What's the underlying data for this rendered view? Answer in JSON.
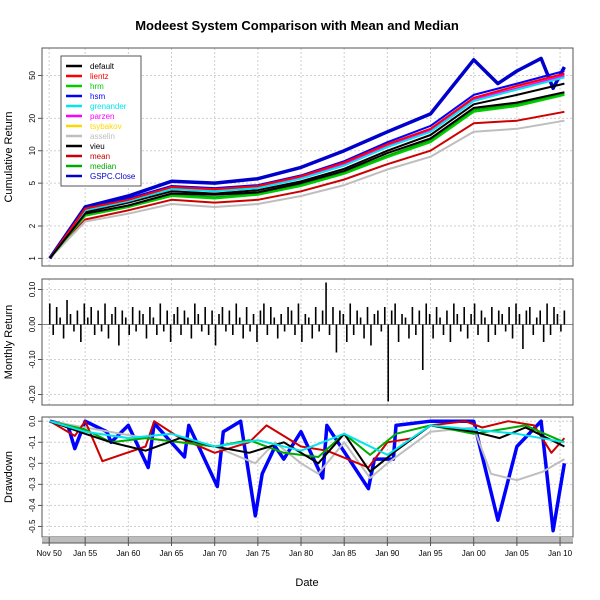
{
  "chart_data": [
    {
      "panel": "cumulative",
      "type": "line",
      "title": "Modeest System Comparison with Mean and Median",
      "ylabel": "Cumulative Return",
      "y_scale": "log",
      "ylim": [
        0.85,
        90
      ],
      "y_ticks": [
        1,
        2,
        5,
        10,
        20,
        50
      ],
      "grid": true,
      "legend_position": "top-left",
      "series": [
        {
          "name": "default",
          "color": "#000000",
          "x": [
            1950.9,
            1955,
            1960,
            1965,
            1970,
            1975,
            1980,
            1985,
            1990,
            1995,
            2000,
            2005,
            2010.5
          ],
          "values": [
            1,
            2.6,
            3.1,
            4.0,
            3.9,
            4.1,
            5.0,
            6.5,
            9.5,
            13,
            25,
            28,
            35
          ]
        },
        {
          "name": "lientz",
          "color": "#ff0000",
          "x": [
            1950.9,
            1955,
            1960,
            1965,
            1970,
            1975,
            1980,
            1985,
            1990,
            1995,
            2000,
            2005,
            2010.5
          ],
          "values": [
            1,
            2.9,
            3.5,
            4.6,
            4.4,
            4.7,
            5.8,
            7.8,
            11.5,
            16,
            31,
            40,
            52
          ]
        },
        {
          "name": "hrm",
          "color": "#00cc00",
          "x": [
            1950.9,
            1955,
            1960,
            1965,
            1970,
            1975,
            1980,
            1985,
            1990,
            1995,
            2000,
            2005,
            2010.5
          ],
          "values": [
            1,
            2.5,
            3.0,
            3.8,
            3.6,
            3.9,
            4.7,
            6.1,
            8.7,
            12,
            23,
            26,
            33
          ]
        },
        {
          "name": "hsm",
          "color": "#0000ff",
          "x": [
            1950.9,
            1955,
            1960,
            1965,
            1970,
            1975,
            1980,
            1985,
            1990,
            1995,
            2000,
            2005,
            2010.5
          ],
          "values": [
            1,
            2.9,
            3.6,
            4.7,
            4.5,
            4.8,
            5.9,
            8.0,
            12,
            17,
            33,
            42,
            55
          ]
        },
        {
          "name": "grenander",
          "color": "#00e5ee",
          "x": [
            1950.9,
            1955,
            1960,
            1965,
            1970,
            1975,
            1980,
            1985,
            1990,
            1995,
            2000,
            2005,
            2010.5
          ],
          "values": [
            1,
            2.8,
            3.4,
            4.4,
            4.2,
            4.5,
            5.5,
            7.3,
            10.8,
            15,
            29,
            37,
            48
          ]
        },
        {
          "name": "parzen",
          "color": "#ff00ff",
          "x": [
            1950.9,
            1955,
            1960,
            1965,
            1970,
            1975,
            1980,
            1985,
            1990,
            1995,
            2000,
            2005,
            2010.5
          ],
          "values": [
            1,
            2.8,
            3.4,
            4.5,
            4.3,
            4.6,
            5.6,
            7.5,
            11,
            15.5,
            30,
            38,
            50
          ]
        },
        {
          "name": "tsybakov",
          "color": "#ffd700",
          "x": [
            1950.9,
            1955,
            1960,
            1965,
            1970,
            1975,
            1980,
            1985,
            1990,
            1995,
            2000,
            2005,
            2010.5
          ],
          "values": [
            1,
            2.8,
            3.5,
            4.5,
            4.3,
            4.6,
            5.7,
            7.6,
            11.2,
            15.7,
            30.5,
            39,
            51
          ]
        },
        {
          "name": "asselin",
          "color": "#bebebe",
          "x": [
            1950.9,
            1955,
            1960,
            1965,
            1970,
            1975,
            1980,
            1985,
            1990,
            1995,
            2000,
            2005,
            2010.5
          ],
          "values": [
            1,
            2.2,
            2.6,
            3.2,
            3.0,
            3.2,
            3.8,
            4.8,
            6.7,
            8.8,
            15,
            16,
            19
          ]
        },
        {
          "name": "vieu",
          "color": "#000000",
          "x": [
            1950.9,
            1955,
            1960,
            1965,
            1970,
            1975,
            1980,
            1985,
            1990,
            1995,
            2000,
            2005,
            2010.5
          ],
          "values": [
            1,
            2.7,
            3.3,
            4.2,
            4.0,
            4.3,
            5.2,
            6.8,
            10,
            14,
            27,
            33,
            42
          ]
        },
        {
          "name": "mean",
          "color": "#cc0000",
          "x": [
            1950.9,
            1955,
            1960,
            1965,
            1970,
            1975,
            1980,
            1985,
            1990,
            1995,
            2000,
            2005,
            2010.5
          ],
          "values": [
            1,
            2.3,
            2.8,
            3.5,
            3.3,
            3.5,
            4.2,
            5.4,
            7.5,
            10,
            18,
            19,
            23
          ]
        },
        {
          "name": "median",
          "color": "#00aa00",
          "x": [
            1950.9,
            1955,
            1960,
            1965,
            1970,
            1975,
            1980,
            1985,
            1990,
            1995,
            2000,
            2005,
            2010.5
          ],
          "values": [
            1,
            2.5,
            3.0,
            3.9,
            3.7,
            4.0,
            4.8,
            6.3,
            9.0,
            12.5,
            24,
            27,
            34
          ]
        },
        {
          "name": "GSPC.Close",
          "color": "#0000cc",
          "x": [
            1950.9,
            1955,
            1960,
            1965,
            1970,
            1975,
            1980,
            1985,
            1990,
            1995,
            2000,
            2002.8,
            2005,
            2007.8,
            2009.2,
            2010.5
          ],
          "values": [
            1,
            3.0,
            3.8,
            5.2,
            5.0,
            5.5,
            7.0,
            10,
            15,
            22,
            70,
            42,
            55,
            72,
            38,
            60
          ]
        }
      ]
    },
    {
      "panel": "monthly",
      "type": "bar",
      "ylabel": "Monthly Return",
      "ylim": [
        -0.23,
        0.13
      ],
      "y_ticks": [
        -0.2,
        -0.1,
        0.0,
        0.1
      ],
      "y_tick_labels": [
        "-0.20",
        "-0.10",
        "0.00",
        "0.10"
      ],
      "grid": true,
      "values": [
        0.06,
        -0.03,
        0.05,
        0.02,
        -0.04,
        0.07,
        0.03,
        -0.02,
        0.04,
        -0.05,
        0.06,
        0.02,
        0.05,
        -0.03,
        0.04,
        -0.02,
        0.06,
        -0.04,
        0.03,
        0.05,
        -0.06,
        0.04,
        0.02,
        -0.03,
        0.05,
        -0.02,
        0.04,
        0.03,
        -0.04,
        0.05,
        0.02,
        -0.03,
        0.06,
        -0.02,
        0.04,
        -0.05,
        0.03,
        0.05,
        -0.03,
        0.04,
        0.02,
        -0.04,
        0.06,
        0.03,
        -0.02,
        0.05,
        -0.03,
        0.04,
        -0.06,
        0.03,
        0.05,
        -0.02,
        0.04,
        -0.03,
        0.06,
        0.02,
        -0.04,
        0.05,
        -0.02,
        0.03,
        -0.05,
        0.04,
        0.06,
        -0.03,
        0.05,
        0.02,
        -0.04,
        0.03,
        -0.02,
        0.05,
        0.04,
        -0.03,
        0.06,
        -0.05,
        0.03,
        0.02,
        -0.04,
        0.05,
        -0.02,
        0.04,
        0.12,
        -0.03,
        0.05,
        -0.08,
        0.04,
        0.03,
        -0.05,
        0.06,
        -0.03,
        0.04,
        0.02,
        -0.04,
        0.05,
        -0.06,
        0.03,
        0.04,
        -0.02,
        0.05,
        -0.22,
        0.04,
        0.06,
        -0.05,
        0.03,
        0.02,
        -0.04,
        0.05,
        -0.03,
        0.04,
        -0.13,
        0.06,
        0.03,
        -0.04,
        0.05,
        0.02,
        -0.03,
        0.04,
        -0.05,
        0.06,
        0.03,
        -0.02,
        0.05,
        -0.04,
        0.03,
        0.06,
        -0.03,
        0.04,
        0.02,
        -0.05,
        0.05,
        -0.03,
        0.04,
        0.03,
        -0.02,
        0.05,
        -0.04,
        0.06,
        0.03,
        -0.07,
        0.04,
        0.05,
        -0.03,
        0.02,
        0.04,
        -0.05,
        0.06,
        -0.03,
        0.05,
        0.03,
        -0.02,
        0.04
      ]
    },
    {
      "panel": "drawdown",
      "type": "line",
      "ylabel": "Drawdown",
      "ylim": [
        -0.55,
        0.02
      ],
      "y_ticks": [
        0.0,
        -0.1,
        -0.2,
        -0.3,
        -0.4,
        -0.5
      ],
      "y_tick_labels": [
        "0.0",
        "-0.1",
        "-0.2",
        "-0.3",
        "-0.4",
        "-0.5"
      ],
      "grid": true,
      "series": [
        {
          "name": "GSPC.Close",
          "color": "#0000ff",
          "x": [
            1950.9,
            1953,
            1953.8,
            1955,
            1957.5,
            1958,
            1960,
            1962.3,
            1963,
            1966.5,
            1967,
            1970.3,
            1971,
            1973,
            1974.7,
            1975.5,
            1977,
            1978,
            1980,
            1982.5,
            1983,
            1987.8,
            1988.5,
            1990.7,
            1991,
            1995,
            2000,
            2002.8,
            2005,
            2007.8,
            2009.2,
            2010.5
          ],
          "values": [
            0,
            -0.02,
            -0.13,
            0,
            -0.05,
            -0.1,
            -0.02,
            -0.22,
            -0.01,
            -0.17,
            -0.02,
            -0.31,
            -0.05,
            0,
            -0.45,
            -0.25,
            -0.12,
            -0.18,
            -0.05,
            -0.27,
            -0.02,
            -0.32,
            -0.18,
            -0.18,
            -0.02,
            0,
            0,
            -0.47,
            -0.12,
            0,
            -0.52,
            -0.2
          ]
        },
        {
          "name": "asselin",
          "color": "#bebebe",
          "x": [
            1950.9,
            1962,
            1970,
            1974.7,
            1977,
            1980,
            1982,
            1985,
            1988,
            1990,
            1995,
            2000,
            2002,
            2005,
            2008,
            2010.5
          ],
          "values": [
            0,
            -0.08,
            -0.12,
            -0.2,
            -0.1,
            -0.2,
            -0.25,
            -0.1,
            -0.27,
            -0.2,
            -0.05,
            -0.03,
            -0.25,
            -0.28,
            -0.24,
            -0.18
          ]
        },
        {
          "name": "mean",
          "color": "#cc0000",
          "x": [
            1950.9,
            1953.8,
            1955,
            1957,
            1962,
            1963,
            1966,
            1970,
            1974,
            1976,
            1980,
            1983,
            1987.8,
            1990,
            1993,
            1995,
            1999,
            2001,
            2004,
            2007,
            2009,
            2010.5
          ],
          "values": [
            0,
            -0.07,
            0,
            -0.19,
            -0.12,
            0,
            -0.08,
            -0.15,
            -0.1,
            -0.02,
            -0.12,
            -0.14,
            -0.22,
            -0.1,
            -0.08,
            -0.02,
            0,
            -0.03,
            0,
            -0.02,
            -0.15,
            -0.08
          ]
        },
        {
          "name": "median",
          "color": "#00aa00",
          "x": [
            1950.9,
            1955,
            1958,
            1962,
            1966,
            1970,
            1974,
            1978,
            1982,
            1985,
            1988,
            1991,
            1995,
            2000,
            2003,
            2006,
            2010.5
          ],
          "values": [
            0,
            -0.04,
            -0.1,
            -0.08,
            -0.1,
            -0.12,
            -0.09,
            -0.15,
            -0.17,
            -0.06,
            -0.16,
            -0.06,
            -0.02,
            -0.06,
            -0.04,
            -0.02,
            -0.1
          ]
        },
        {
          "name": "default",
          "color": "#000000",
          "x": [
            1950.9,
            1955,
            1958,
            1962,
            1966,
            1970,
            1974,
            1978,
            1982,
            1985,
            1988,
            1991,
            1995,
            2000,
            2003,
            2006,
            2010.5
          ],
          "values": [
            0,
            -0.06,
            -0.1,
            -0.14,
            -0.08,
            -0.12,
            -0.15,
            -0.1,
            -0.2,
            -0.06,
            -0.24,
            -0.14,
            -0.02,
            -0.05,
            -0.08,
            -0.03,
            -0.12
          ]
        },
        {
          "name": "grenander",
          "color": "#00e5ee",
          "x": [
            1950.9,
            1955,
            1960,
            1965,
            1970,
            1975,
            1980,
            1985,
            1990,
            1995,
            2000,
            2005,
            2010.5
          ],
          "values": [
            0,
            -0.05,
            -0.08,
            -0.06,
            -0.12,
            -0.09,
            -0.14,
            -0.06,
            -0.16,
            -0.02,
            -0.04,
            -0.06,
            -0.1
          ]
        }
      ]
    }
  ],
  "x_axis": {
    "label": "Date",
    "tick_labels": [
      "Nov 50",
      "Jan 55",
      "Jan 60",
      "Jan 65",
      "Jan 70",
      "Jan 75",
      "Jan 80",
      "Jan 85",
      "Jan 90",
      "Jan 95",
      "Jan 00",
      "Jan 05",
      "Jan 10"
    ],
    "tick_years": [
      1950.833,
      1955,
      1960,
      1965,
      1970,
      1975,
      1980,
      1985,
      1990,
      1995,
      2000,
      2005,
      2010
    ]
  }
}
